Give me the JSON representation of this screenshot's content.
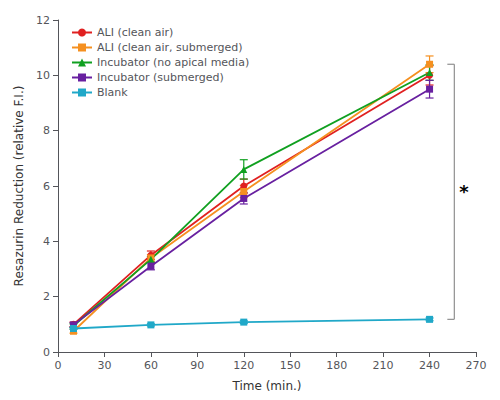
{
  "chart_data": {
    "type": "line",
    "xlabel": "Time (min.)",
    "ylabel": "Resazurin Reduction (relative F.I.)",
    "x": [
      10,
      60,
      120,
      240
    ],
    "series": [
      {
        "name": "ALI (clean air)",
        "color": "#e02020",
        "marker": "circle",
        "values": [
          1.0,
          3.5,
          6.0,
          10.0
        ],
        "sem": [
          0.08,
          0.15,
          0.25,
          0.35
        ]
      },
      {
        "name": "ALI (clean air, submerged)",
        "color": "#f59020",
        "marker": "square",
        "values": [
          0.75,
          3.4,
          5.8,
          10.4
        ],
        "sem": [
          0.07,
          0.12,
          0.22,
          0.3
        ]
      },
      {
        "name": "Incubator (no apical media)",
        "color": "#10a020",
        "marker": "triangle",
        "values": [
          0.95,
          3.35,
          6.6,
          10.1
        ],
        "sem": [
          0.07,
          0.1,
          0.35,
          0.28
        ]
      },
      {
        "name": "Incubator (submerged)",
        "color": "#6820a0",
        "marker": "square",
        "values": [
          0.98,
          3.1,
          5.55,
          9.5
        ],
        "sem": [
          0.08,
          0.13,
          0.2,
          0.32
        ]
      },
      {
        "name": "Blank",
        "color": "#20a8c8",
        "marker": "square",
        "values": [
          0.85,
          0.98,
          1.08,
          1.18
        ],
        "sem": [
          0.03,
          0.04,
          0.05,
          0.05
        ]
      }
    ],
    "xlim": [
      0,
      270
    ],
    "ylim": [
      0,
      12
    ],
    "xticks": [
      0,
      30,
      60,
      90,
      120,
      150,
      180,
      210,
      240,
      270
    ],
    "yticks": [
      0,
      2,
      4,
      6,
      8,
      10,
      12
    ],
    "grid": false,
    "legend": "upper left",
    "annotations": [
      {
        "type": "bracket",
        "x": 256,
        "y_top": 10.4,
        "y_bottom": 1.18,
        "text": "*",
        "text_y": 5.8,
        "color": "#909090"
      }
    ]
  }
}
